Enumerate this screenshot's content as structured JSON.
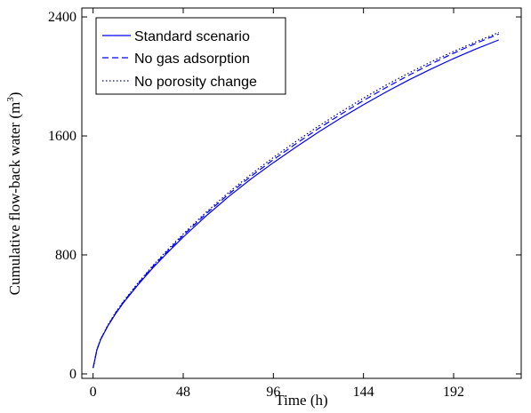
{
  "chart_data": {
    "type": "line",
    "title": "",
    "xlabel": "Time (h)",
    "ylabel_prefix": "Cumulative flow-back water (m",
    "ylabel_sup": "3",
    "ylabel_suffix": ")",
    "xlim": [
      -6,
      228
    ],
    "ylim": [
      -30,
      2460
    ],
    "xticks": [
      0,
      48,
      96,
      144,
      192
    ],
    "yticks": [
      0,
      800,
      1600,
      2400
    ],
    "grid": false,
    "legend_position": "top-left",
    "x": [
      0,
      2,
      4,
      8,
      12,
      16,
      24,
      32,
      40,
      48,
      60,
      72,
      84,
      96,
      108,
      120,
      132,
      144,
      156,
      168,
      180,
      192,
      204,
      216
    ],
    "series": [
      {
        "name": "Standard scenario",
        "style": "solid",
        "color": "#0000ff",
        "values": [
          40,
          160,
          230,
          325,
          405,
          475,
          600,
          715,
          820,
          920,
          1060,
          1190,
          1310,
          1420,
          1525,
          1625,
          1720,
          1810,
          1895,
          1975,
          2050,
          2120,
          2185,
          2245
        ]
      },
      {
        "name": "No gas adsorption",
        "style": "dashed",
        "color": "#0000ff",
        "values": [
          40,
          160,
          232,
          328,
          410,
          480,
          607,
          724,
          830,
          932,
          1075,
          1206,
          1328,
          1440,
          1547,
          1649,
          1746,
          1838,
          1925,
          2007,
          2084,
          2156,
          2223,
          2285
        ]
      },
      {
        "name": "No porosity change",
        "style": "dotted",
        "color": "#000080",
        "values": [
          40,
          162,
          234,
          331,
          414,
          485,
          613,
          731,
          839,
          941,
          1085,
          1218,
          1341,
          1455,
          1563,
          1665,
          1762,
          1854,
          1941,
          2022,
          2098,
          2168,
          2233,
          2295
        ]
      }
    ]
  }
}
